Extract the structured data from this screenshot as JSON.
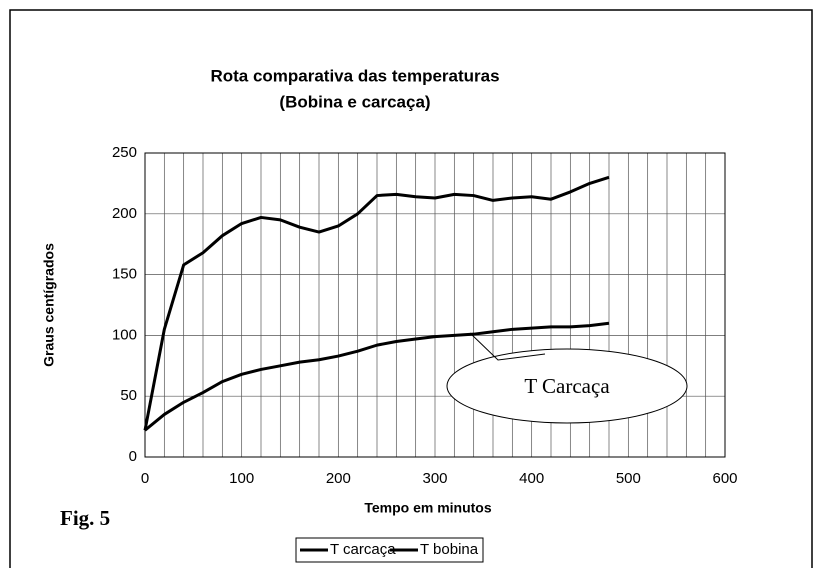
{
  "chart_data": {
    "type": "line",
    "title": [
      "Rota comparativa das temperaturas",
      "(Bobina e carcaça)"
    ],
    "x_label": "Tempo em minutos",
    "y_label": "Graus centígrados",
    "figure_label": "Fig. 5",
    "annotation": "T Carcaça",
    "x": [
      0,
      20,
      40,
      60,
      80,
      100,
      120,
      140,
      160,
      180,
      200,
      220,
      240,
      260,
      280,
      300,
      320,
      340,
      360,
      380,
      400,
      420,
      440,
      460,
      480
    ],
    "series": [
      {
        "name": "T carcaça",
        "color": "#000000",
        "values": [
          22,
          35,
          45,
          53,
          62,
          68,
          72,
          75,
          78,
          80,
          83,
          87,
          92,
          95,
          97,
          99,
          100,
          101,
          103,
          105,
          106,
          107,
          107,
          108,
          110
        ]
      },
      {
        "name": "T bobina",
        "color": "#000000",
        "values": [
          22,
          105,
          158,
          168,
          182,
          192,
          197,
          195,
          189,
          185,
          190,
          200,
          215,
          216,
          214,
          213,
          216,
          215,
          211,
          213,
          214,
          212,
          218,
          225,
          230
        ]
      }
    ],
    "xlim": [
      0,
      600
    ],
    "xticks": [
      0,
      100,
      200,
      300,
      400,
      500,
      600
    ],
    "x_grid": [
      0,
      20,
      40,
      60,
      80,
      100,
      120,
      140,
      160,
      180,
      200,
      220,
      240,
      260,
      280,
      300,
      320,
      340,
      360,
      380,
      400,
      420,
      440,
      460,
      480,
      500,
      520,
      540,
      560,
      580,
      600
    ],
    "ylim": [
      0,
      250
    ],
    "yticks": [
      0,
      50,
      100,
      150,
      200,
      250
    ],
    "grid": true,
    "legend": "bottom"
  }
}
